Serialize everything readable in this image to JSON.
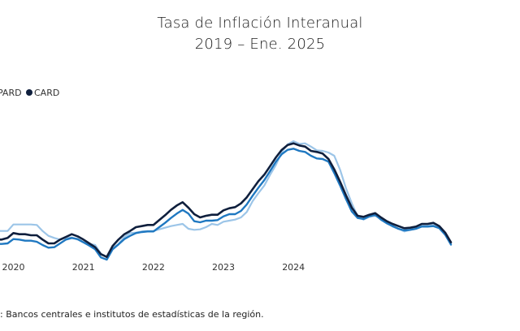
{
  "title": "Tasa de Inflación Interanual",
  "subtitle": "2019 – Ene. 2025",
  "source": ": Bancos centrales e institutos de estadísticas de la región.",
  "colors": {
    "series1": "#0f1f3d",
    "series2": "#1f78c1",
    "series3": "#9cc5e8"
  },
  "chart_data": {
    "type": "line",
    "title": "Tasa de Inflación Interanual",
    "subtitle": "2019 – Ene. 2025",
    "x_tick_labels": [
      "2020",
      "2021",
      "2022",
      "2023",
      "2024"
    ],
    "legend_labels": [
      "PARD",
      "CARD"
    ],
    "legend_placement": "top-left",
    "grid": false,
    "x_start": "2019-10",
    "x_end": "2025-01",
    "ylim": [
      0,
      300
    ],
    "series": [
      {
        "name": "CARD",
        "color": "#0f1f3d",
        "values": [
          52,
          52,
          55,
          64,
          62,
          62,
          60,
          60,
          52,
          45,
          45,
          52,
          57,
          62,
          58,
          52,
          45,
          38,
          25,
          20,
          40,
          52,
          62,
          68,
          75,
          77,
          79,
          79,
          88,
          97,
          107,
          115,
          121,
          111,
          99,
          93,
          96,
          98,
          98,
          106,
          110,
          112,
          119,
          130,
          145,
          160,
          172,
          188,
          204,
          218,
          227,
          230,
          226,
          224,
          216,
          214,
          211,
          201,
          182,
          159,
          134,
          111,
          96,
          94,
          98,
          101,
          93,
          86,
          81,
          77,
          73,
          74,
          76,
          81,
          81,
          83,
          77,
          65,
          47
        ]
      },
      {
        "name": "",
        "color": "#1f78c1",
        "values": [
          44,
          44,
          45,
          53,
          52,
          50,
          50,
          48,
          42,
          37,
          38,
          45,
          52,
          55,
          53,
          47,
          41,
          34,
          19,
          15,
          34,
          43,
          53,
          59,
          64,
          66,
          67,
          67,
          75,
          83,
          92,
          100,
          107,
          100,
          86,
          84,
          87,
          87,
          88,
          95,
          99,
          99,
          105,
          117,
          133,
          148,
          162,
          179,
          196,
          210,
          218,
          220,
          216,
          214,
          207,
          202,
          201,
          196,
          175,
          152,
          127,
          104,
          92,
          90,
          95,
          98,
          89,
          82,
          77,
          72,
          69,
          70,
          72,
          76,
          76,
          77,
          73,
          61,
          43
        ]
      },
      {
        "name": "PARD",
        "color": "#9cc5e8",
        "values": [
          68,
          68,
          68,
          80,
          80,
          80,
          80,
          79,
          68,
          59,
          55,
          52,
          55,
          56,
          52,
          47,
          44,
          42,
          26,
          19,
          36,
          44,
          57,
          64,
          65,
          67,
          68,
          68,
          71,
          74,
          77,
          79,
          81,
          72,
          70,
          71,
          75,
          81,
          79,
          85,
          87,
          89,
          93,
          103,
          123,
          138,
          152,
          172,
          190,
          214,
          228,
          234,
          229,
          230,
          224,
          217,
          216,
          213,
          207,
          181,
          147,
          119,
          95,
          89,
          94,
          96,
          91,
          83,
          76,
          72,
          67,
          70,
          74,
          78,
          78,
          79,
          75,
          62,
          42
        ]
      }
    ]
  }
}
